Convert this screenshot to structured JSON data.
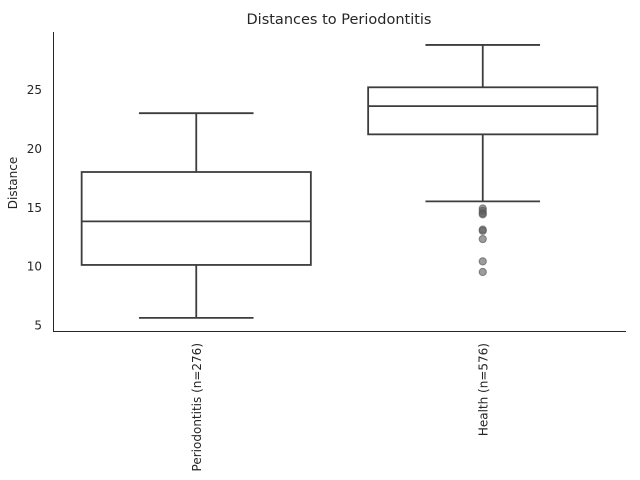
{
  "chart_data": {
    "type": "box",
    "title": "Distances to Periodontitis",
    "xlabel": "",
    "ylabel": "Distance",
    "ylim": [
      4.4,
      29.9
    ],
    "yticks": [
      5,
      10,
      15,
      20,
      25
    ],
    "categories": [
      "Periodontitis (n=276)",
      "Health (n=576)"
    ],
    "boxes": [
      {
        "category": "Periodontitis (n=276)",
        "whisker_low": 5.6,
        "q1": 10.1,
        "median": 13.8,
        "q3": 18.0,
        "whisker_high": 23.0,
        "outliers": []
      },
      {
        "category": "Health (n=576)",
        "whisker_low": 15.5,
        "q1": 21.2,
        "median": 23.6,
        "q3": 25.2,
        "whisker_high": 28.8,
        "outliers": [
          14.9,
          14.7,
          14.5,
          14.4,
          13.1,
          13.0,
          12.3,
          10.4,
          9.5
        ]
      }
    ],
    "grid": false,
    "legend": "none"
  },
  "colors": {
    "box_edge": "#3d3d3d",
    "outlier": "#5a5a5a",
    "text": "#262626",
    "box_fill": "#ffffff"
  }
}
